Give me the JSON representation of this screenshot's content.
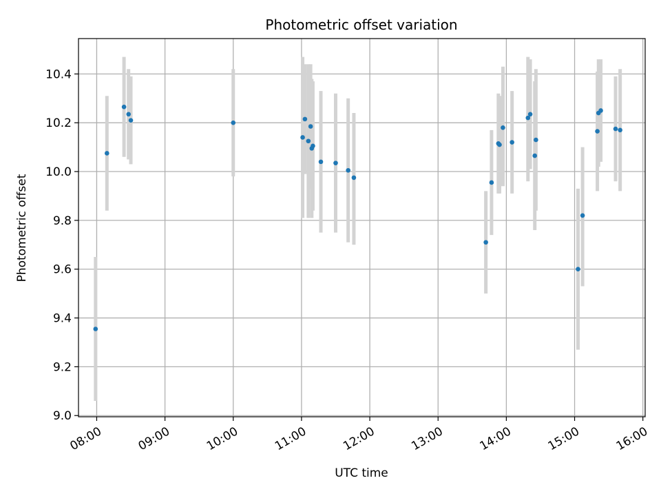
{
  "chart_data": {
    "type": "scatter",
    "title": "Photometric offset variation",
    "xlabel": "UTC time",
    "ylabel": "Photometric offset",
    "x_unit": "time of day (HH:MM, UTC)",
    "xlim": [
      "07:44",
      "16:02"
    ],
    "ylim": [
      8.995,
      10.545
    ],
    "xticks": [
      "08:00",
      "09:00",
      "10:00",
      "11:00",
      "12:00",
      "13:00",
      "14:00",
      "15:00",
      "16:00"
    ],
    "yticks": [
      "9.0",
      "9.2",
      "9.4",
      "9.6",
      "9.8",
      "10.0",
      "10.2",
      "10.4"
    ],
    "grid": true,
    "legend": "none",
    "colors": {
      "marker": "#1f77b4",
      "errorbar": "#d3d3d3",
      "grid": "#b0b0b0"
    },
    "series": [
      {
        "points": [
          {
            "x": "07:59",
            "y": 9.355,
            "lo": 9.06,
            "hi": 9.65
          },
          {
            "x": "08:09",
            "y": 10.075,
            "lo": 9.84,
            "hi": 10.31
          },
          {
            "x": "08:24",
            "y": 10.265,
            "lo": 10.06,
            "hi": 10.47
          },
          {
            "x": "08:28",
            "y": 10.235,
            "lo": 10.05,
            "hi": 10.42
          },
          {
            "x": "08:30",
            "y": 10.21,
            "lo": 10.03,
            "hi": 10.39
          },
          {
            "x": "10:00",
            "y": 10.2,
            "lo": 9.98,
            "hi": 10.42
          },
          {
            "x": "11:01",
            "y": 10.14,
            "lo": 9.81,
            "hi": 10.47
          },
          {
            "x": "11:03",
            "y": 10.215,
            "lo": 9.99,
            "hi": 10.44
          },
          {
            "x": "11:06",
            "y": 10.125,
            "lo": 9.81,
            "hi": 10.44
          },
          {
            "x": "11:08",
            "y": 10.185,
            "lo": 9.93,
            "hi": 10.44
          },
          {
            "x": "11:09",
            "y": 10.095,
            "lo": 9.81,
            "hi": 10.38
          },
          {
            "x": "11:10",
            "y": 10.105,
            "lo": 9.84,
            "hi": 10.37
          },
          {
            "x": "11:17",
            "y": 10.04,
            "lo": 9.75,
            "hi": 10.33
          },
          {
            "x": "11:30",
            "y": 10.035,
            "lo": 9.75,
            "hi": 10.32
          },
          {
            "x": "11:41",
            "y": 10.005,
            "lo": 9.71,
            "hi": 10.3
          },
          {
            "x": "11:46",
            "y": 9.975,
            "lo": 9.7,
            "hi": 10.24
          },
          {
            "x": "13:42",
            "y": 9.71,
            "lo": 9.5,
            "hi": 9.92
          },
          {
            "x": "13:47",
            "y": 9.955,
            "lo": 9.74,
            "hi": 10.17
          },
          {
            "x": "13:53",
            "y": 10.115,
            "lo": 9.91,
            "hi": 10.32
          },
          {
            "x": "13:54",
            "y": 10.11,
            "lo": 9.91,
            "hi": 10.31
          },
          {
            "x": "13:57",
            "y": 10.18,
            "lo": 9.94,
            "hi": 10.43
          },
          {
            "x": "14:05",
            "y": 10.12,
            "lo": 9.91,
            "hi": 10.33
          },
          {
            "x": "14:19",
            "y": 10.22,
            "lo": 9.96,
            "hi": 10.47
          },
          {
            "x": "14:21",
            "y": 10.235,
            "lo": 10.01,
            "hi": 10.46
          },
          {
            "x": "14:25",
            "y": 10.065,
            "lo": 9.76,
            "hi": 10.37
          },
          {
            "x": "14:26",
            "y": 10.13,
            "lo": 9.84,
            "hi": 10.42
          },
          {
            "x": "15:03",
            "y": 9.6,
            "lo": 9.27,
            "hi": 9.93
          },
          {
            "x": "15:07",
            "y": 9.82,
            "lo": 9.53,
            "hi": 10.1
          },
          {
            "x": "15:20",
            "y": 10.165,
            "lo": 9.92,
            "hi": 10.41
          },
          {
            "x": "15:21",
            "y": 10.24,
            "lo": 10.02,
            "hi": 10.46
          },
          {
            "x": "15:23",
            "y": 10.25,
            "lo": 10.04,
            "hi": 10.46
          },
          {
            "x": "15:36",
            "y": 10.175,
            "lo": 9.96,
            "hi": 10.39
          },
          {
            "x": "15:40",
            "y": 10.17,
            "lo": 9.92,
            "hi": 10.42
          }
        ]
      }
    ]
  }
}
